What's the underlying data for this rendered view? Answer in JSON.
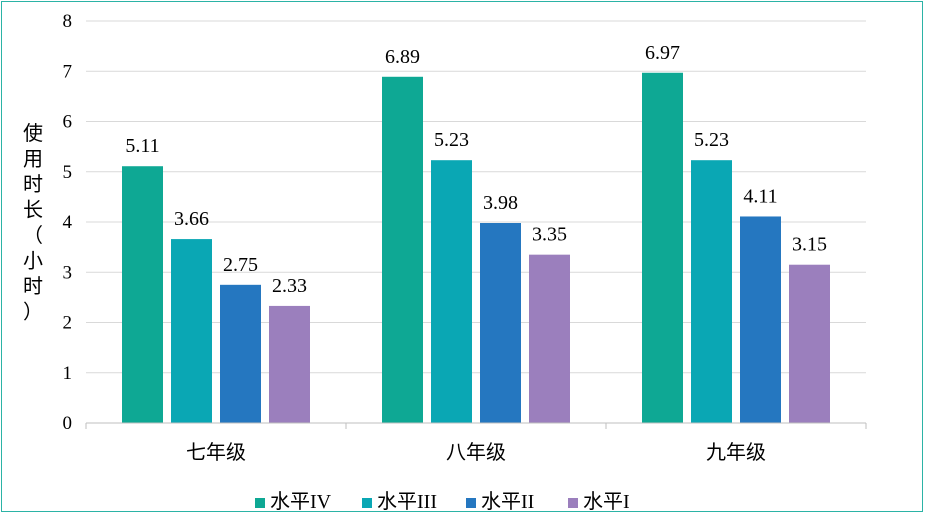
{
  "chart_data": {
    "type": "bar",
    "title": "",
    "xlabel": "",
    "ylabel": "使用时长（小时）",
    "ylim": [
      0,
      8
    ],
    "yticks": [
      "0",
      "1",
      "2",
      "3",
      "4",
      "5",
      "6",
      "7",
      "8"
    ],
    "categories": [
      "七年级",
      "八年级",
      "九年级"
    ],
    "series": [
      {
        "name": "水平IV",
        "values": [
          5.11,
          6.89,
          6.97
        ],
        "labels": [
          "5.11",
          "6.89",
          "6.97"
        ],
        "color": "#0ea894"
      },
      {
        "name": "水平III",
        "values": [
          3.66,
          5.23,
          5.23
        ],
        "labels": [
          "3.66",
          "5.23",
          "5.23"
        ],
        "color": "#0aa7b4"
      },
      {
        "name": "水平II",
        "values": [
          2.75,
          3.98,
          4.11
        ],
        "labels": [
          "2.75",
          "3.98",
          "4.11"
        ],
        "color": "#2577c0"
      },
      {
        "name": "水平I",
        "values": [
          2.33,
          3.35,
          3.15
        ],
        "labels": [
          "2.33",
          "3.35",
          "3.15"
        ],
        "color": "#9b7fbd"
      }
    ],
    "grid": true,
    "legend": "bottom"
  }
}
